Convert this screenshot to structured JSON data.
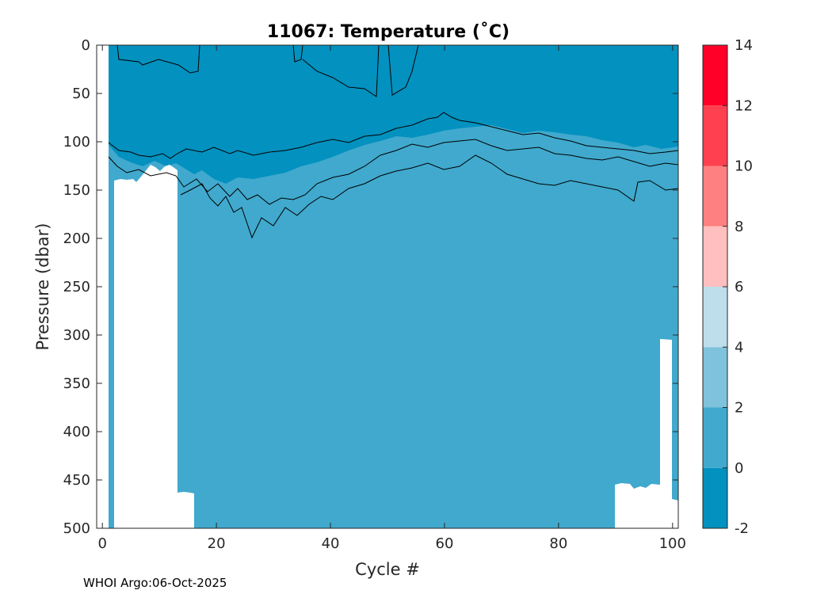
{
  "chart_data": {
    "type": "heatmap",
    "title": "11067:  Temperature (˚C)",
    "xlabel": "Cycle #",
    "ylabel": "Pressure (dbar)",
    "xlim": [
      -1,
      101
    ],
    "ylim": [
      0,
      500
    ],
    "y_reversed": true,
    "x_ticks": [
      0,
      20,
      40,
      60,
      80,
      100
    ],
    "x_tick_labels": [
      "0",
      "20",
      "40",
      "60",
      "80",
      "100"
    ],
    "y_ticks": [
      0,
      50,
      100,
      150,
      200,
      250,
      300,
      350,
      400,
      450,
      500
    ],
    "y_tick_labels": [
      "0",
      "50",
      "100",
      "150",
      "200",
      "250",
      "300",
      "350",
      "400",
      "450",
      "500"
    ],
    "colorbar": {
      "levels": [
        -2,
        0,
        2,
        4,
        6,
        8,
        10,
        12,
        14
      ],
      "tick_labels": [
        "-2",
        "0",
        "2",
        "4",
        "6",
        "8",
        "10",
        "12",
        "14"
      ],
      "colors": [
        "#0391BF",
        "#40A9CD",
        "#7FC2DC",
        "#BEDEEB",
        "#FFBFBF",
        "#FF8080",
        "#FF4050",
        "#FF0028"
      ]
    },
    "temperature_bands": [
      {
        "range": "-2 to 0 ˚C",
        "pressure_bottom_approx": [
          {
            "cycle": 1,
            "pressure": 105
          },
          {
            "cycle": 13,
            "pressure": 140
          },
          {
            "cycle": 27,
            "pressure": 140
          },
          {
            "cycle": 40,
            "pressure": 120
          },
          {
            "cycle": 60,
            "pressure": 95
          },
          {
            "cycle": 80,
            "pressure": 105
          },
          {
            "cycle": 101,
            "pressure": 105
          }
        ]
      },
      {
        "range": "0 to 2 ˚C",
        "pressure_bottom": 500
      }
    ],
    "data_gaps": [
      {
        "from_cycle": 0,
        "to_cycle": 1,
        "top_pressure": 0
      },
      {
        "from_cycle": 2,
        "to_cycle": 13,
        "top_pressure": 125
      },
      {
        "from_cycle": 13,
        "to_cycle": 16,
        "top_pressure": 463
      },
      {
        "from_cycle": 89.5,
        "to_cycle": 97.5,
        "top_pressure": 455
      },
      {
        "from_cycle": 97.5,
        "to_cycle": 99.5,
        "top_pressure": 305
      },
      {
        "from_cycle": 99.5,
        "to_cycle": 101,
        "top_pressure": 470
      }
    ]
  },
  "footer": "WHOI Argo:06-Oct-2025"
}
